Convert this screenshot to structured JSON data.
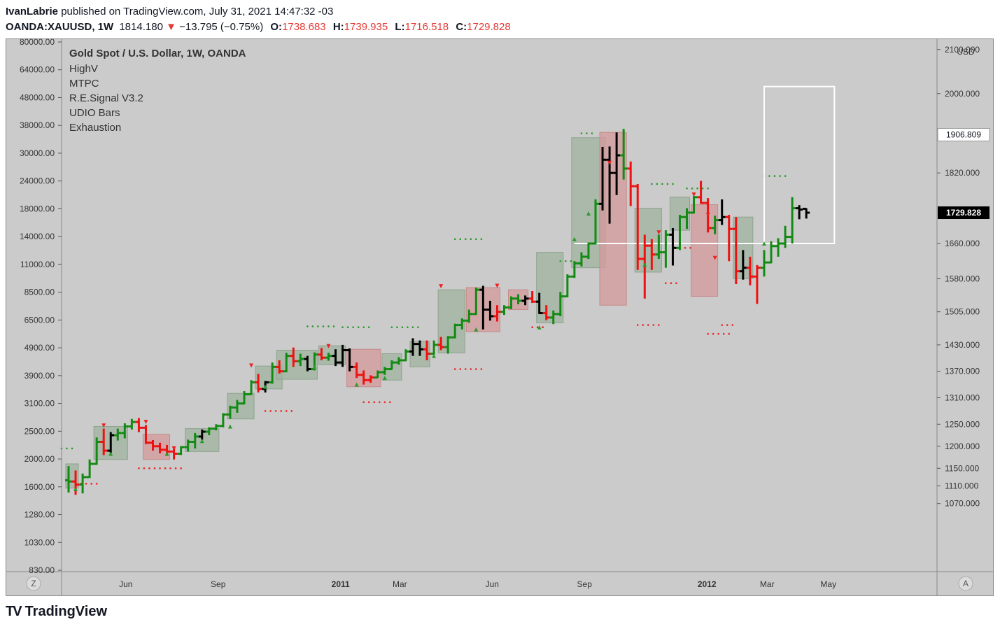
{
  "header": {
    "author": "IvanLabrie",
    "published_text": "published on TradingView.com, July 31, 2021 14:47:32 -03",
    "symbol": "OANDA:XAUUSD, 1W",
    "price": "1814.180",
    "change_arrow": "▼",
    "change": "−13.795 (−0.75%)",
    "o_label": "O:",
    "o_value": "1738.683",
    "h_label": "H:",
    "h_value": "1739.935",
    "l_label": "L:",
    "l_value": "1716.518",
    "c_label": "C:",
    "c_value": "1729.828"
  },
  "legend": {
    "title": "Gold Spot / U.S. Dollar, 1W, OANDA",
    "indicators": [
      "HighV",
      "MTPC",
      "R.E.Signal V3.2",
      "UDIO Bars",
      "Exhaustion"
    ]
  },
  "footer": {
    "brand": "TradingView"
  },
  "colors": {
    "background": "#cbcbcb",
    "up": "#138a13",
    "down": "#ee1111",
    "neutral": "#000000",
    "box_up": "#9fb39f",
    "box_down": "#d49a9a",
    "highlight_box": "#ffffff",
    "last_price_label": "#000000"
  },
  "chart_data": {
    "type": "ohlc",
    "right_axis_unit": "USD",
    "right_axis_ticks": [
      "2100.000",
      "2000.000",
      "1820.000",
      "1660.000",
      "1580.000",
      "1505.000",
      "1430.000",
      "1370.000",
      "1310.000",
      "1250.000",
      "1200.000",
      "1150.000",
      "1110.000",
      "1070.000"
    ],
    "right_axis_price_labels": [
      {
        "text": "1906.809",
        "price": 1906.809,
        "style": "outline"
      },
      {
        "text": "1729.828",
        "price": 1729.828,
        "style": "filled"
      }
    ],
    "left_axis_ticks": [
      "80000.00",
      "64000.00",
      "48000.00",
      "38000.00",
      "30000.00",
      "24000.00",
      "18000.00",
      "14000.00",
      "11000.00",
      "8500.00",
      "6500.00",
      "4900.00",
      "3900.00",
      "3100.00",
      "2500.00",
      "2000.00",
      "1600.00",
      "1280.00",
      "1030.00",
      "830.00"
    ],
    "x_ticks": [
      "Jun",
      "Sep",
      "2011",
      "Mar",
      "Jun",
      "Sep",
      "2012",
      "Mar",
      "May"
    ],
    "x_tick_dates": [
      "2010-06-01",
      "2010-09-01",
      "2011-01-01",
      "2011-03-01",
      "2011-06-01",
      "2011-09-01",
      "2012-01-01",
      "2012-03-01",
      "2012-05-01"
    ],
    "axis_buttons": {
      "left": "Z",
      "right": "A"
    },
    "bars_start": "2010-04-05",
    "bars_interval_weeks": 1,
    "bars": [
      [
        1123,
        1155,
        1095,
        1120,
        "u"
      ],
      [
        1120,
        1145,
        1090,
        1113,
        "d"
      ],
      [
        1113,
        1138,
        1093,
        1130,
        "u"
      ],
      [
        1130,
        1170,
        1128,
        1160,
        "u"
      ],
      [
        1160,
        1220,
        1158,
        1210,
        "u"
      ],
      [
        1210,
        1240,
        1180,
        1190,
        "d"
      ],
      [
        1190,
        1232,
        1185,
        1225,
        "n"
      ],
      [
        1225,
        1240,
        1213,
        1230,
        "u"
      ],
      [
        1230,
        1252,
        1218,
        1245,
        "u"
      ],
      [
        1245,
        1262,
        1238,
        1255,
        "u"
      ],
      [
        1255,
        1264,
        1232,
        1242,
        "d"
      ],
      [
        1242,
        1248,
        1205,
        1208,
        "d"
      ],
      [
        1208,
        1214,
        1190,
        1200,
        "d"
      ],
      [
        1200,
        1208,
        1184,
        1192,
        "d"
      ],
      [
        1192,
        1203,
        1178,
        1188,
        "d"
      ],
      [
        1188,
        1200,
        1170,
        1183,
        "d"
      ],
      [
        1183,
        1200,
        1180,
        1198,
        "u"
      ],
      [
        1198,
        1215,
        1188,
        1210,
        "u"
      ],
      [
        1210,
        1230,
        1195,
        1222,
        "u"
      ],
      [
        1222,
        1238,
        1215,
        1233,
        "n"
      ],
      [
        1233,
        1243,
        1225,
        1240,
        "u"
      ],
      [
        1240,
        1250,
        1236,
        1246,
        "u"
      ],
      [
        1246,
        1275,
        1243,
        1272,
        "u"
      ],
      [
        1272,
        1292,
        1262,
        1288,
        "u"
      ],
      [
        1288,
        1305,
        1276,
        1297,
        "u"
      ],
      [
        1297,
        1325,
        1295,
        1318,
        "u"
      ],
      [
        1318,
        1350,
        1316,
        1345,
        "u"
      ],
      [
        1345,
        1364,
        1322,
        1330,
        "d"
      ],
      [
        1330,
        1348,
        1322,
        1345,
        "n"
      ],
      [
        1345,
        1390,
        1342,
        1380,
        "u"
      ],
      [
        1380,
        1395,
        1365,
        1370,
        "d"
      ],
      [
        1370,
        1412,
        1368,
        1405,
        "u"
      ],
      [
        1405,
        1424,
        1380,
        1393,
        "d"
      ],
      [
        1393,
        1410,
        1382,
        1398,
        "u"
      ],
      [
        1398,
        1405,
        1370,
        1375,
        "n"
      ],
      [
        1375,
        1413,
        1372,
        1408,
        "u"
      ],
      [
        1408,
        1423,
        1395,
        1401,
        "d"
      ],
      [
        1401,
        1412,
        1394,
        1405,
        "u"
      ],
      [
        1405,
        1420,
        1382,
        1390,
        "n"
      ],
      [
        1390,
        1430,
        1380,
        1418,
        "n"
      ],
      [
        1418,
        1422,
        1370,
        1380,
        "n"
      ],
      [
        1380,
        1390,
        1355,
        1362,
        "d"
      ],
      [
        1362,
        1372,
        1340,
        1350,
        "d"
      ],
      [
        1350,
        1361,
        1344,
        1356,
        "d"
      ],
      [
        1356,
        1372,
        1355,
        1368,
        "u"
      ],
      [
        1368,
        1380,
        1362,
        1375,
        "u"
      ],
      [
        1375,
        1395,
        1374,
        1390,
        "u"
      ],
      [
        1390,
        1402,
        1385,
        1395,
        "u"
      ],
      [
        1395,
        1420,
        1393,
        1415,
        "u"
      ],
      [
        1415,
        1445,
        1405,
        1432,
        "n"
      ],
      [
        1432,
        1440,
        1405,
        1420,
        "n"
      ],
      [
        1420,
        1440,
        1395,
        1410,
        "d"
      ],
      [
        1410,
        1440,
        1408,
        1430,
        "u"
      ],
      [
        1430,
        1448,
        1418,
        1425,
        "d"
      ],
      [
        1425,
        1450,
        1410,
        1447,
        "u"
      ],
      [
        1447,
        1478,
        1445,
        1475,
        "u"
      ],
      [
        1475,
        1490,
        1465,
        1485,
        "u"
      ],
      [
        1485,
        1510,
        1480,
        1500,
        "u"
      ],
      [
        1500,
        1560,
        1498,
        1555,
        "u"
      ],
      [
        1555,
        1564,
        1465,
        1510,
        "n"
      ],
      [
        1510,
        1530,
        1485,
        1495,
        "n"
      ],
      [
        1495,
        1520,
        1483,
        1505,
        "d"
      ],
      [
        1505,
        1520,
        1498,
        1515,
        "u"
      ],
      [
        1515,
        1540,
        1511,
        1535,
        "u"
      ],
      [
        1535,
        1545,
        1522,
        1530,
        "u"
      ],
      [
        1530,
        1542,
        1520,
        1535,
        "n"
      ],
      [
        1535,
        1552,
        1525,
        1528,
        "d"
      ],
      [
        1528,
        1548,
        1500,
        1502,
        "n"
      ],
      [
        1502,
        1520,
        1486,
        1492,
        "d"
      ],
      [
        1492,
        1508,
        1477,
        1500,
        "u"
      ],
      [
        1500,
        1550,
        1495,
        1540,
        "u"
      ],
      [
        1540,
        1590,
        1538,
        1585,
        "u"
      ],
      [
        1585,
        1620,
        1582,
        1615,
        "u"
      ],
      [
        1615,
        1640,
        1608,
        1630,
        "u"
      ],
      [
        1630,
        1662,
        1625,
        1660,
        "u"
      ],
      [
        1660,
        1760,
        1658,
        1750,
        "u"
      ],
      [
        1750,
        1879,
        1735,
        1850,
        "n"
      ],
      [
        1850,
        1880,
        1705,
        1820,
        "n"
      ],
      [
        1820,
        1912,
        1770,
        1860,
        "n"
      ],
      [
        1860,
        1920,
        1805,
        1830,
        "u"
      ],
      [
        1830,
        1846,
        1745,
        1790,
        "d"
      ],
      [
        1790,
        1795,
        1600,
        1625,
        "d"
      ],
      [
        1625,
        1680,
        1535,
        1655,
        "d"
      ],
      [
        1655,
        1670,
        1600,
        1635,
        "d"
      ],
      [
        1635,
        1680,
        1625,
        1640,
        "u"
      ],
      [
        1640,
        1690,
        1605,
        1680,
        "u"
      ],
      [
        1680,
        1695,
        1610,
        1650,
        "n"
      ],
      [
        1650,
        1725,
        1645,
        1720,
        "u"
      ],
      [
        1720,
        1740,
        1693,
        1730,
        "u"
      ],
      [
        1730,
        1768,
        1728,
        1765,
        "u"
      ],
      [
        1765,
        1802,
        1750,
        1752,
        "d"
      ],
      [
        1752,
        1763,
        1685,
        1695,
        "d"
      ],
      [
        1695,
        1723,
        1681,
        1713,
        "u"
      ],
      [
        1713,
        1760,
        1702,
        1720,
        "n"
      ],
      [
        1720,
        1725,
        1620,
        1693,
        "d"
      ],
      [
        1693,
        1720,
        1568,
        1597,
        "d"
      ],
      [
        1597,
        1645,
        1578,
        1605,
        "n"
      ],
      [
        1605,
        1630,
        1565,
        1585,
        "d"
      ],
      [
        1585,
        1611,
        1523,
        1605,
        "d"
      ],
      [
        1605,
        1645,
        1585,
        1617,
        "u"
      ],
      [
        1617,
        1665,
        1615,
        1654,
        "u"
      ],
      [
        1654,
        1672,
        1630,
        1660,
        "u"
      ],
      [
        1660,
        1700,
        1650,
        1675,
        "u"
      ],
      [
        1675,
        1765,
        1660,
        1740,
        "u"
      ],
      [
        1740,
        1747,
        1715,
        1737,
        "n"
      ],
      [
        1738.683,
        1739.935,
        1716.518,
        1729.828,
        "n"
      ]
    ],
    "shaded_zones": [
      [
        0,
        1,
        1105,
        1160,
        "up"
      ],
      [
        4,
        8,
        1170,
        1245,
        "up"
      ],
      [
        11,
        14,
        1170,
        1227,
        "down"
      ],
      [
        17,
        21,
        1188,
        1240,
        "up"
      ],
      [
        23,
        26,
        1262,
        1320,
        "up"
      ],
      [
        27,
        30,
        1330,
        1382,
        "up"
      ],
      [
        30,
        35,
        1352,
        1418,
        "up"
      ],
      [
        36,
        39,
        1385,
        1428,
        "up"
      ],
      [
        40,
        44,
        1335,
        1420,
        "down"
      ],
      [
        45,
        47,
        1350,
        1410,
        "up"
      ],
      [
        49,
        51,
        1380,
        1438,
        "up"
      ],
      [
        53,
        56,
        1412,
        1555,
        "up"
      ],
      [
        57,
        61,
        1460,
        1560,
        "down"
      ],
      [
        63,
        65,
        1510,
        1555,
        "down"
      ],
      [
        67,
        70,
        1480,
        1640,
        "up"
      ],
      [
        72,
        76,
        1605,
        1900,
        "up"
      ],
      [
        76,
        79,
        1520,
        1912,
        "down"
      ],
      [
        81,
        84,
        1595,
        1740,
        "up"
      ],
      [
        86,
        88,
        1690,
        1765,
        "up"
      ],
      [
        89,
        92,
        1540,
        1748,
        "down"
      ],
      [
        95,
        97,
        1580,
        1720,
        "up"
      ]
    ],
    "signal_dots": [
      [
        -1,
        1,
        1195,
        "up"
      ],
      [
        1,
        4,
        1115,
        "down"
      ],
      [
        10,
        16,
        1150,
        "down"
      ],
      [
        28,
        32,
        1280,
        "down"
      ],
      [
        34,
        38,
        1472,
        "up"
      ],
      [
        39,
        43,
        1470,
        "up"
      ],
      [
        42,
        46,
        1300,
        "down"
      ],
      [
        46,
        50,
        1470,
        "up"
      ],
      [
        55,
        59,
        1375,
        "down"
      ],
      [
        55,
        59,
        1670,
        "up"
      ],
      [
        66,
        68,
        1470,
        "down"
      ],
      [
        70,
        72,
        1620,
        "up"
      ],
      [
        73,
        75,
        1910,
        "up"
      ],
      [
        81,
        84,
        1475,
        "down"
      ],
      [
        83,
        86,
        1795,
        "up"
      ],
      [
        85,
        87,
        1570,
        "down"
      ],
      [
        87,
        89,
        1650,
        "down"
      ],
      [
        88,
        91,
        1785,
        "up"
      ],
      [
        91,
        94,
        1455,
        "down"
      ],
      [
        93,
        95,
        1475,
        "down"
      ],
      [
        99,
        102,
        1813,
        "up"
      ]
    ],
    "triangle_markers": [
      [
        5,
        1247,
        "down-red"
      ],
      [
        11,
        1255,
        "down-red"
      ],
      [
        15,
        1195,
        "down-red"
      ],
      [
        26,
        1383,
        "down-red"
      ],
      [
        37,
        1427,
        "down-red"
      ],
      [
        53,
        1563,
        "down-red"
      ],
      [
        61,
        1564,
        "down-red"
      ],
      [
        77,
        1843,
        "down-red"
      ],
      [
        84,
        1685,
        "down-red"
      ],
      [
        89,
        1771,
        "down-red"
      ],
      [
        91,
        1725,
        "down-red"
      ],
      [
        92,
        1627,
        "down-red"
      ],
      [
        1,
        1103,
        "up-green"
      ],
      [
        6,
        1183,
        "up-green"
      ],
      [
        14,
        1183,
        "up-green"
      ],
      [
        19,
        1212,
        "up-green"
      ],
      [
        23,
        1245,
        "up-green"
      ],
      [
        28,
        1335,
        "up-green"
      ],
      [
        35,
        1380,
        "up-green"
      ],
      [
        41,
        1340,
        "up-green"
      ],
      [
        45,
        1355,
        "up-green"
      ],
      [
        52,
        1405,
        "up-green"
      ],
      [
        58,
        1465,
        "up-green"
      ],
      [
        67,
        1470,
        "up-green"
      ],
      [
        72,
        1670,
        "up-green"
      ],
      [
        74,
        1728,
        "up-green"
      ],
      [
        82,
        1612,
        "up-green"
      ],
      [
        99,
        1660,
        "up-green"
      ]
    ],
    "highlight_box": {
      "from_bar": 99,
      "to_bar": 104,
      "low": 1660,
      "high": 2016
    },
    "highlight_line": {
      "from_bar": 72,
      "to_bar": 99,
      "price": 1660
    }
  }
}
